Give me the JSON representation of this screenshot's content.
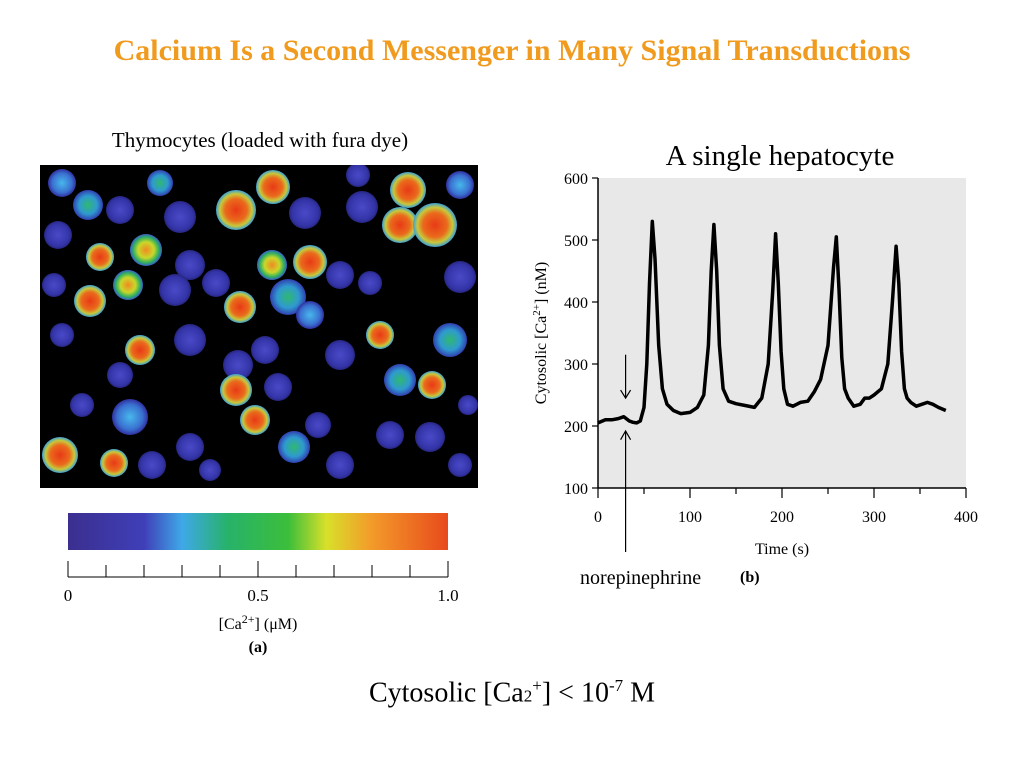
{
  "slide": {
    "title": "Calcium Is a Second Messenger in Many Signal Transductions",
    "title_color": "#f09a1e"
  },
  "left_panel": {
    "caption": "Thymocytes (loaded with fura dye)",
    "colorbar": {
      "ticks": [
        "0",
        "0.5",
        "1.0"
      ],
      "label_prefix": "[Ca",
      "label_sup": "2+",
      "label_suffix": "] (μM)",
      "panel_letter": "(a)",
      "colors": [
        "#3b2f8f",
        "#3f3fb8",
        "#3fa8e8",
        "#27b26a",
        "#3cbe3a",
        "#d8e02a",
        "#f39a2a",
        "#e84a1c"
      ]
    }
  },
  "right_panel": {
    "heading": "A single hepatocyte",
    "annotation": "norepinephrine",
    "panel_letter": "(b)",
    "ylabel_prefix": "Cytosolic [Ca",
    "ylabel_sup": "2+",
    "ylabel_suffix": "] (nM)"
  },
  "chart_data": {
    "type": "line",
    "title": "",
    "xlabel": "Time (s)",
    "ylabel": "Cytosolic [Ca2+] (nM)",
    "xlim": [
      0,
      400
    ],
    "ylim": [
      100,
      600
    ],
    "x_ticks": [
      0,
      100,
      200,
      300,
      400
    ],
    "y_ticks": [
      100,
      200,
      300,
      400,
      500,
      600
    ],
    "grid": false,
    "background": "#e8e8e8",
    "stimulus_time": 30,
    "series": [
      {
        "x": [
          0,
          8,
          15,
          22,
          28,
          34,
          38,
          42,
          46,
          50,
          53,
          56,
          59,
          62,
          66,
          70,
          75,
          82,
          90,
          100,
          108,
          115,
          120,
          123,
          126,
          129,
          132,
          136,
          142,
          150,
          160,
          170,
          178,
          185,
          190,
          193,
          196,
          199,
          202,
          206,
          212,
          220,
          228,
          235,
          242,
          250,
          256,
          259,
          262,
          265,
          268,
          272,
          278,
          285,
          290,
          295,
          300,
          308,
          315,
          320,
          324,
          327,
          330,
          333,
          336,
          340,
          346,
          352,
          358,
          364,
          370,
          378
        ],
        "y": [
          205,
          210,
          210,
          212,
          215,
          208,
          206,
          205,
          208,
          230,
          300,
          430,
          530,
          470,
          330,
          260,
          235,
          225,
          220,
          222,
          230,
          250,
          330,
          450,
          525,
          450,
          330,
          260,
          240,
          236,
          233,
          230,
          245,
          300,
          420,
          510,
          430,
          320,
          260,
          235,
          232,
          238,
          240,
          255,
          275,
          330,
          455,
          505,
          420,
          310,
          260,
          245,
          232,
          235,
          245,
          245,
          250,
          260,
          300,
          400,
          490,
          430,
          320,
          260,
          245,
          238,
          232,
          235,
          238,
          235,
          230,
          225
        ]
      }
    ]
  }
}
